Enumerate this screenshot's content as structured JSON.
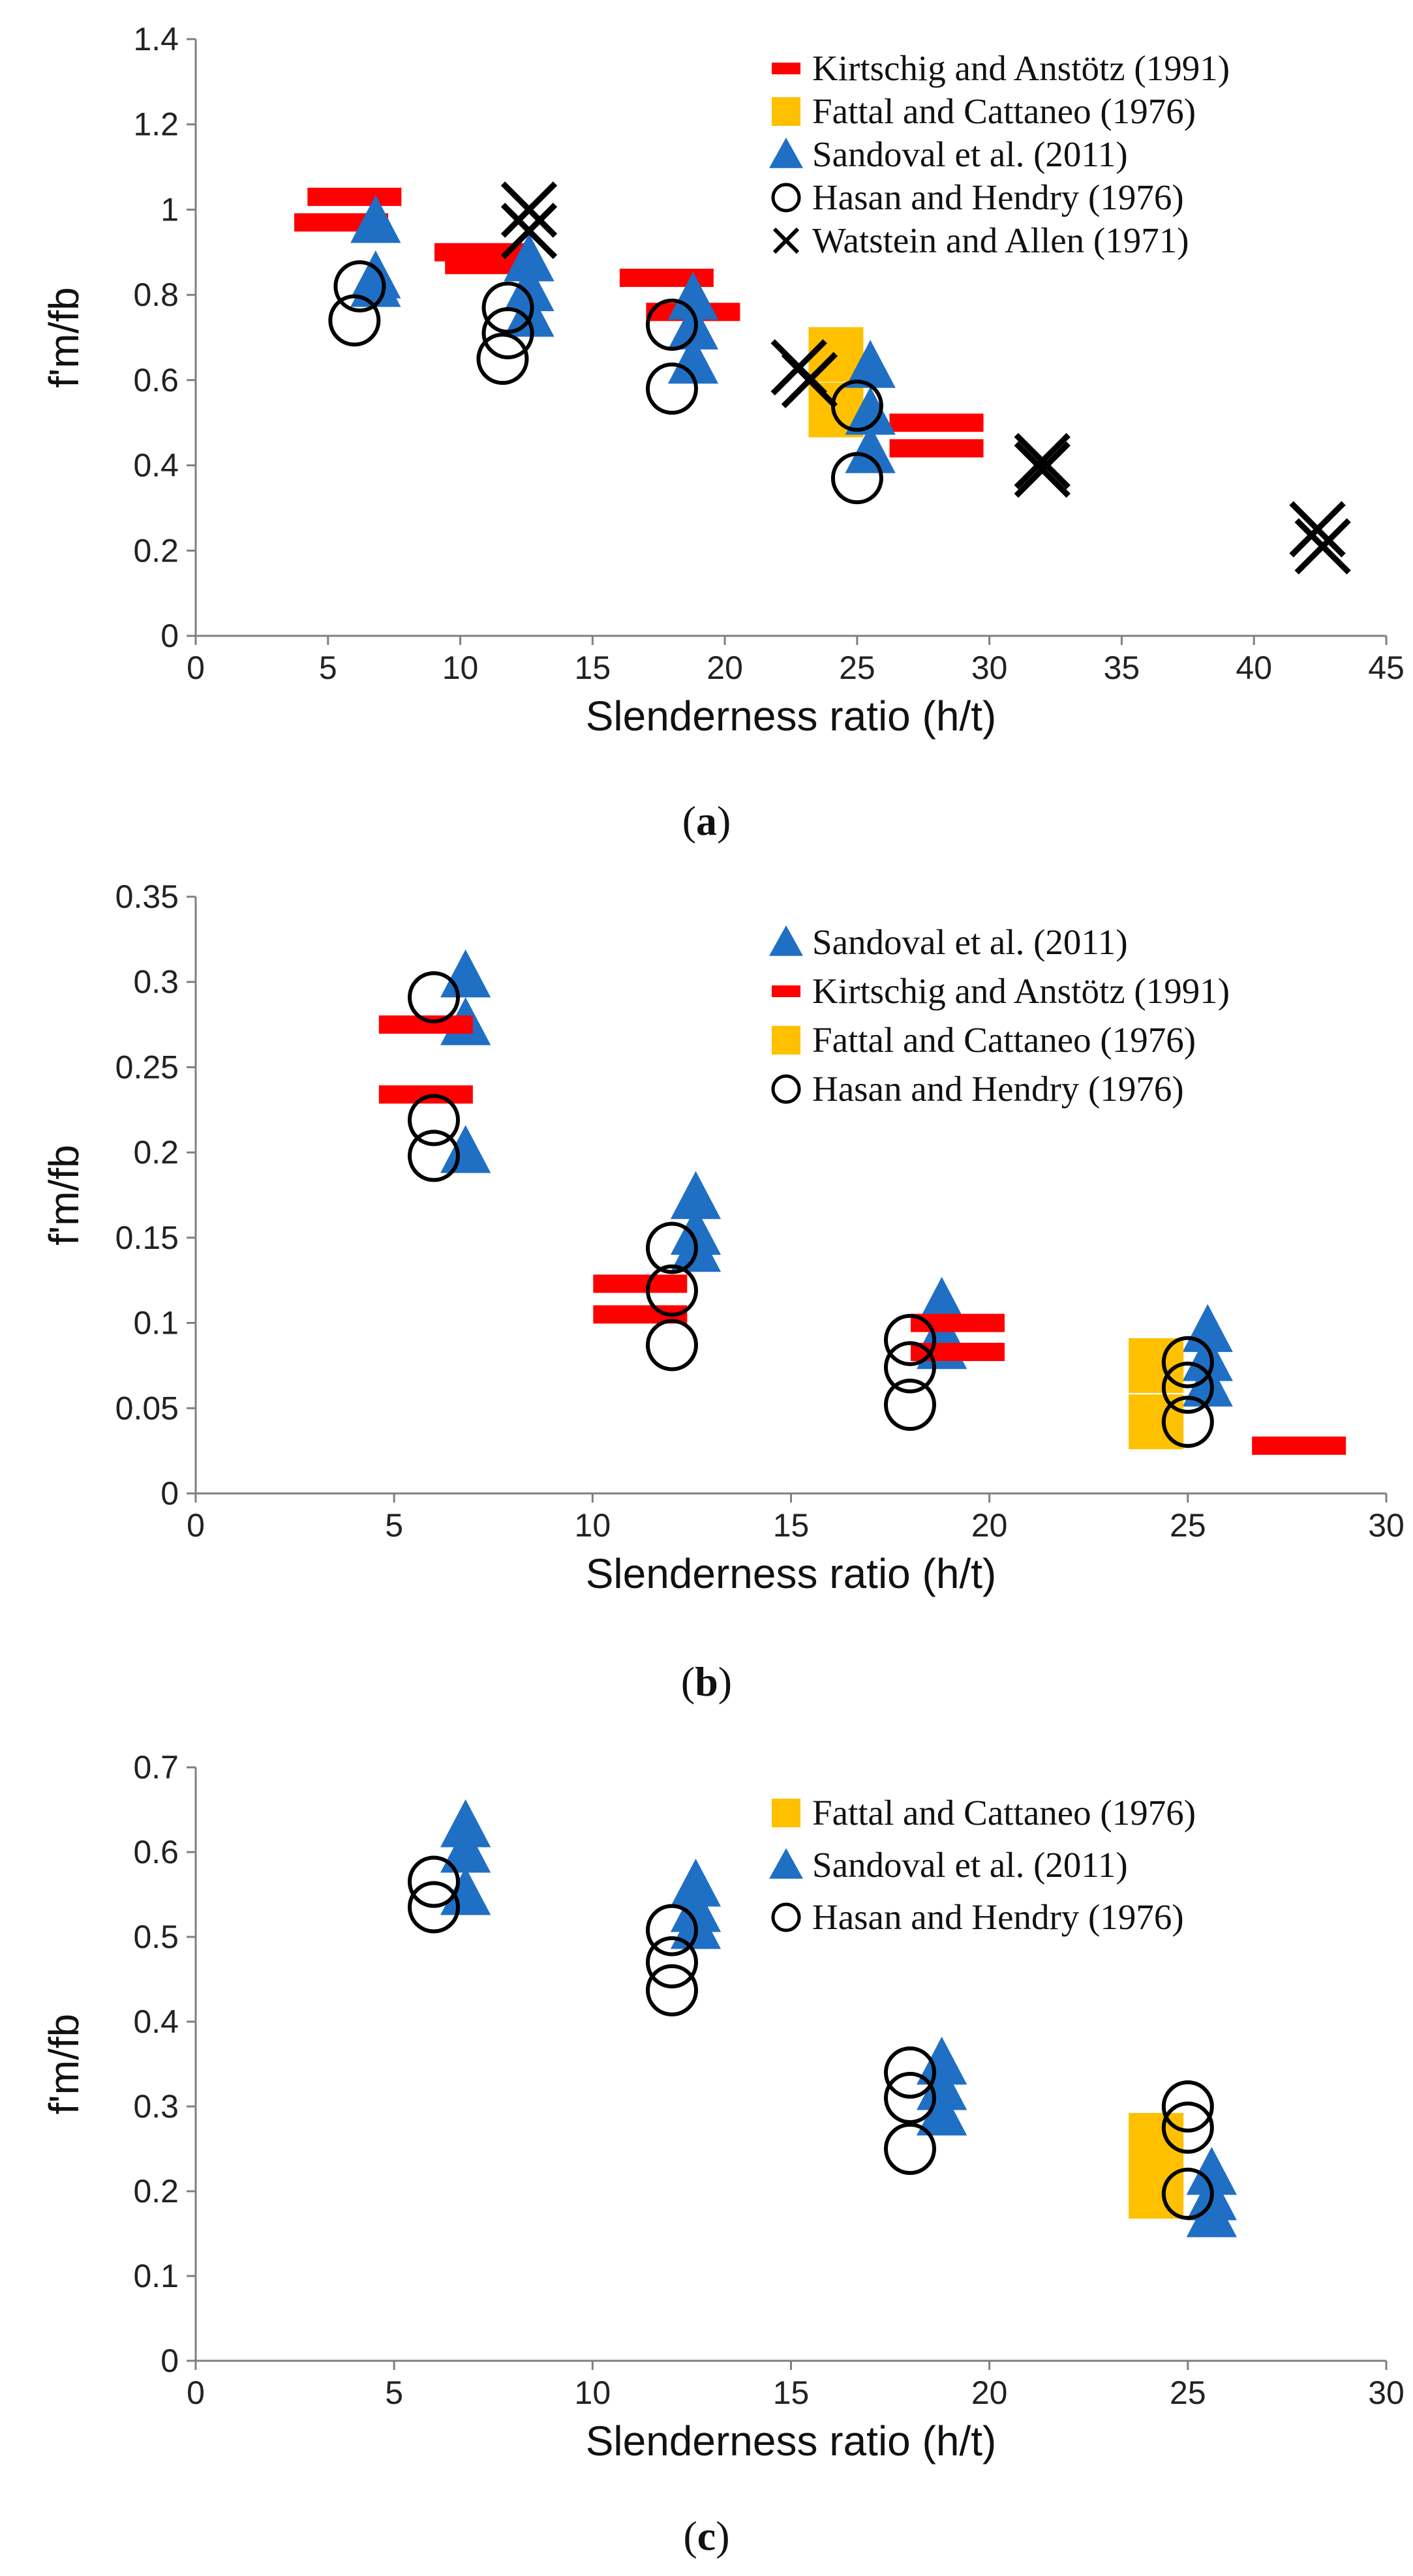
{
  "colors": {
    "kirtschig": "#ff0000",
    "fattal": "#ffc000",
    "sandoval": "#1f6fc4",
    "hasan": "#000000",
    "watstein": "#000000"
  },
  "chart_data": [
    {
      "type": "scatter",
      "panel_label": "a",
      "xlabel": "Slenderness ratio (h/t)",
      "ylabel": "f'm/fb",
      "xlim": [
        0,
        45
      ],
      "ylim": [
        0,
        1.4
      ],
      "x_ticks": [
        0,
        5,
        10,
        15,
        20,
        25,
        30,
        35,
        40,
        45
      ],
      "x_tick_labels": [
        "0",
        "5",
        "10",
        "15",
        "20",
        "25",
        "30",
        "35",
        "40",
        "45"
      ],
      "y_ticks": [
        0,
        0.2,
        0.4,
        0.6,
        0.8,
        1,
        1.2,
        1.4
      ],
      "y_tick_labels": [
        "0",
        "0.2",
        "0.4",
        "0.6",
        "0.8",
        "1",
        "1.2",
        "1.4"
      ],
      "legend_position": "top-right",
      "series": [
        {
          "name": "Kirtschig and Anstötz (1991)",
          "marker": "dash",
          "color_key": "kirtschig",
          "points": [
            [
              6,
              1.03
            ],
            [
              5.5,
              0.97
            ],
            [
              10.8,
              0.9
            ],
            [
              11.2,
              0.87
            ],
            [
              17.8,
              0.84
            ],
            [
              18.8,
              0.76
            ],
            [
              28,
              0.5
            ],
            [
              28,
              0.44
            ]
          ]
        },
        {
          "name": "Fattal and Cattaneo (1976)",
          "marker": "square",
          "color_key": "fattal",
          "points": [
            [
              24.2,
              0.66
            ],
            [
              24.2,
              0.53
            ]
          ]
        },
        {
          "name": "Sandoval et al. (2011)",
          "marker": "triangle",
          "color_key": "sandoval",
          "points": [
            [
              6.8,
              0.97
            ],
            [
              6.8,
              0.84
            ],
            [
              6.8,
              0.82
            ],
            [
              12.6,
              0.88
            ],
            [
              12.6,
              0.81
            ],
            [
              12.6,
              0.75
            ],
            [
              18.8,
              0.79
            ],
            [
              18.8,
              0.72
            ],
            [
              18.8,
              0.64
            ],
            [
              25.5,
              0.63
            ],
            [
              25.5,
              0.52
            ],
            [
              25.5,
              0.43
            ]
          ]
        },
        {
          "name": "Hasan and Hendry (1976)",
          "marker": "circle",
          "color_key": "hasan",
          "points": [
            [
              6.2,
              0.82
            ],
            [
              6.0,
              0.74
            ],
            [
              11.8,
              0.77
            ],
            [
              11.8,
              0.71
            ],
            [
              11.6,
              0.65
            ],
            [
              18,
              0.73
            ],
            [
              18,
              0.58
            ],
            [
              25,
              0.54
            ],
            [
              25,
              0.37
            ]
          ]
        },
        {
          "name": "Watstein and Allen (1971)",
          "marker": "x",
          "color_key": "watstein",
          "points": [
            [
              12.6,
              1.0
            ],
            [
              12.6,
              0.95
            ],
            [
              22.8,
              0.63
            ],
            [
              23.2,
              0.6
            ],
            [
              32,
              0.41
            ],
            [
              32,
              0.39
            ],
            [
              42.4,
              0.25
            ],
            [
              42.6,
              0.21
            ]
          ]
        }
      ]
    },
    {
      "type": "scatter",
      "panel_label": "b",
      "xlabel": "Slenderness ratio (h/t)",
      "ylabel": "f'm/fb",
      "xlim": [
        0,
        30
      ],
      "ylim": [
        0,
        0.35
      ],
      "x_ticks": [
        0,
        5,
        10,
        15,
        20,
        25,
        30
      ],
      "x_tick_labels": [
        "0",
        "5",
        "10",
        "15",
        "20",
        "25",
        "30"
      ],
      "y_ticks": [
        0,
        0.05,
        0.1,
        0.15,
        0.2,
        0.25,
        0.3,
        0.35
      ],
      "y_tick_labels": [
        "0",
        "0.05",
        "0.1",
        "0.15",
        "0.2",
        "0.25",
        "0.3",
        "0.35"
      ],
      "legend_position": "top-right",
      "series": [
        {
          "name": "Sandoval et al. (2011)",
          "marker": "triangle",
          "color_key": "sandoval",
          "points": [
            [
              6.8,
              0.303
            ],
            [
              6.8,
              0.275
            ],
            [
              6.8,
              0.2
            ],
            [
              12.6,
              0.173
            ],
            [
              12.6,
              0.152
            ],
            [
              12.6,
              0.142
            ],
            [
              18.8,
              0.111
            ],
            [
              18.8,
              0.093
            ],
            [
              18.8,
              0.085
            ],
            [
              25.5,
              0.095
            ],
            [
              25.5,
              0.078
            ],
            [
              25.5,
              0.063
            ]
          ]
        },
        {
          "name": "Kirtschig and Anstötz (1991)",
          "marker": "dash",
          "color_key": "kirtschig",
          "points": [
            [
              5.8,
              0.275
            ],
            [
              5.8,
              0.234
            ],
            [
              11.2,
              0.123
            ],
            [
              11.2,
              0.105
            ],
            [
              19.2,
              0.1
            ],
            [
              19.2,
              0.083
            ],
            [
              27.8,
              0.028
            ]
          ]
        },
        {
          "name": "Fattal and Cattaneo (1976)",
          "marker": "square",
          "color_key": "fattal",
          "points": [
            [
              24.2,
              0.075
            ],
            [
              24.2,
              0.042
            ]
          ]
        },
        {
          "name": "Hasan and Hendry (1976)",
          "marker": "circle",
          "color_key": "hasan",
          "points": [
            [
              6,
              0.291
            ],
            [
              6,
              0.219
            ],
            [
              6,
              0.198
            ],
            [
              12,
              0.144
            ],
            [
              12,
              0.119
            ],
            [
              12,
              0.087
            ],
            [
              18,
              0.09
            ],
            [
              18,
              0.074
            ],
            [
              18,
              0.052
            ],
            [
              25,
              0.077
            ],
            [
              25,
              0.062
            ],
            [
              25,
              0.042
            ]
          ]
        }
      ]
    },
    {
      "type": "scatter",
      "panel_label": "c",
      "xlabel": "Slenderness ratio (h/t)",
      "ylabel": "f'm/fb",
      "xlim": [
        0,
        30
      ],
      "ylim": [
        0,
        0.7
      ],
      "x_ticks": [
        0,
        5,
        10,
        15,
        20,
        25,
        30
      ],
      "x_tick_labels": [
        "0",
        "5",
        "10",
        "15",
        "20",
        "25",
        "30"
      ],
      "y_ticks": [
        0,
        0.1,
        0.2,
        0.3,
        0.4,
        0.5,
        0.6,
        0.7
      ],
      "y_tick_labels": [
        "0",
        "0.1",
        "0.2",
        "0.3",
        "0.4",
        "0.5",
        "0.6",
        "0.7"
      ],
      "legend_position": "top-right",
      "series": [
        {
          "name": "Fattal and Cattaneo (1976)",
          "marker": "square",
          "color_key": "fattal",
          "points": [
            [
              24.2,
              0.26
            ],
            [
              24.2,
              0.2
            ]
          ]
        },
        {
          "name": "Sandoval et al. (2011)",
          "marker": "triangle",
          "color_key": "sandoval",
          "points": [
            [
              6.8,
              0.63
            ],
            [
              6.8,
              0.6
            ],
            [
              6.8,
              0.55
            ],
            [
              12.6,
              0.56
            ],
            [
              12.6,
              0.53
            ],
            [
              12.6,
              0.51
            ],
            [
              18.8,
              0.35
            ],
            [
              18.8,
              0.32
            ],
            [
              18.8,
              0.29
            ],
            [
              25.6,
              0.22
            ],
            [
              25.6,
              0.19
            ],
            [
              25.6,
              0.17
            ]
          ]
        },
        {
          "name": "Hasan and Hendry (1976)",
          "marker": "circle",
          "color_key": "hasan",
          "points": [
            [
              6,
              0.565
            ],
            [
              6,
              0.535
            ],
            [
              12,
              0.508
            ],
            [
              12,
              0.47
            ],
            [
              12,
              0.437
            ],
            [
              18,
              0.34
            ],
            [
              18,
              0.31
            ],
            [
              18,
              0.25
            ],
            [
              25,
              0.3
            ],
            [
              25,
              0.275
            ],
            [
              25,
              0.197
            ]
          ]
        }
      ]
    }
  ]
}
